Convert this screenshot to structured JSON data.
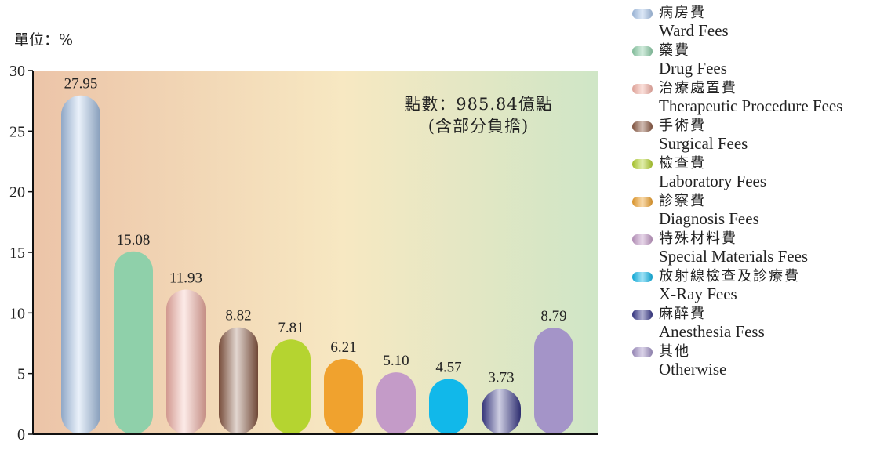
{
  "chart_data": {
    "type": "bar",
    "unit_label": "單位：%",
    "ylim": [
      0,
      30
    ],
    "yticks": [
      0,
      5,
      10,
      15,
      20,
      25,
      30
    ],
    "annotation": [
      "點數：985.84億點",
      "(含部分負擔)"
    ],
    "categories": [
      {
        "zh": "病房費",
        "en": "Ward Fees"
      },
      {
        "zh": "藥費",
        "en": "Drug Fees"
      },
      {
        "zh": "治療處置費",
        "en": "Therapeutic Procedure Fees"
      },
      {
        "zh": "手術費",
        "en": "Surgical Fees"
      },
      {
        "zh": "檢查費",
        "en": "Laboratory Fees"
      },
      {
        "zh": "診察費",
        "en": "Diagnosis Fees"
      },
      {
        "zh": "特殊材料費",
        "en": "Special Materials Fees"
      },
      {
        "zh": "放射線檢查及診療費",
        "en": "X-Ray Fees"
      },
      {
        "zh": "麻醉費",
        "en": "Anesthesia Fess"
      },
      {
        "zh": "其他",
        "en": "Otherwise"
      }
    ],
    "values": [
      27.95,
      15.08,
      11.93,
      8.82,
      7.81,
      6.21,
      5.1,
      4.57,
      3.73,
      8.79
    ],
    "value_labels": [
      "27.95",
      "15.08",
      "11.93",
      "8.82",
      "7.81",
      "6.21",
      "5.10",
      "4.57",
      "3.73",
      "8.79"
    ],
    "colors": [
      "#a9c6ea",
      "#8fd0aa",
      "#f6b3a8",
      "#8c5a44",
      "#b5d430",
      "#f0a22e",
      "#c49bc8",
      "#11b8ea",
      "#3a3a8c",
      "#a494c8"
    ],
    "legend_placement": "right",
    "grid": false
  }
}
